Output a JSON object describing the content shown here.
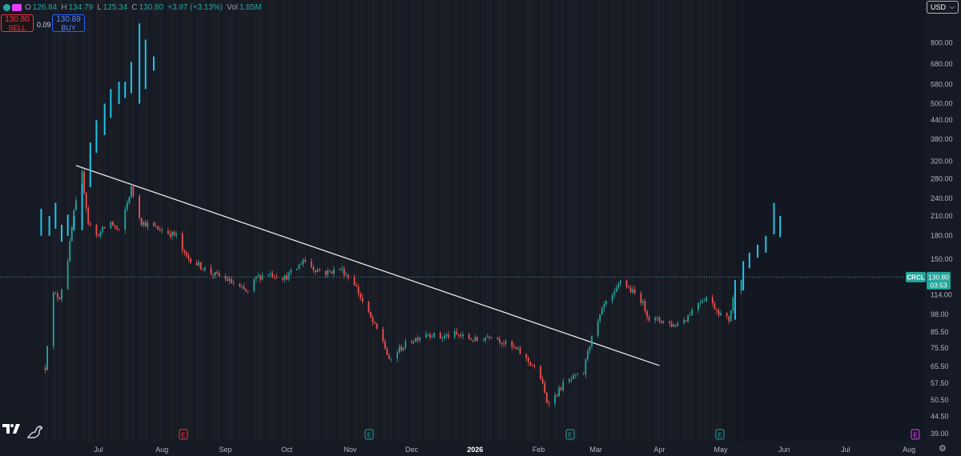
{
  "header": {
    "open_label": "O",
    "open": "126.84",
    "high_label": "H",
    "high": "134.79",
    "low_label": "L",
    "low": "125.34",
    "close_label": "C",
    "close": "130.80",
    "change": "+3.97 (+3.13%)",
    "vol_label": "Vol",
    "vol": "1.85M"
  },
  "trade": {
    "sell_price": "130.80",
    "sell_label": "SELL",
    "spread": "0.09",
    "buy_price": "130.89",
    "buy_label": "BUY"
  },
  "currency": "USD",
  "price_tag": {
    "symbol": "CRCL",
    "price": "130.80",
    "countdown": "03:53"
  },
  "event_markers": [
    {
      "label": "E",
      "month": "Aug",
      "color": "#f23645"
    },
    {
      "label": "E",
      "month": "Nov",
      "color": "#26a69a"
    },
    {
      "label": "E",
      "month": "Mar",
      "color": "#26a69a"
    },
    {
      "label": "E",
      "month": "May",
      "color": "#26a69a"
    },
    {
      "label": "E",
      "month": "Aug",
      "color": "#e040fb"
    }
  ],
  "icons": [
    "symbol-icon",
    "tradingview-logo-icon",
    "dino-icon",
    "settings-gear-icon",
    "chevron-down-icon"
  ],
  "colors": {
    "up": "#26a69a",
    "down": "#ef5350",
    "projection": "#22c4e6",
    "trendline": "#e9e9e9",
    "background": "#161a25"
  },
  "chart_data": {
    "type": "candlestick",
    "scale": "log",
    "symbol": "CRCL",
    "x_ticks": [
      "Jul",
      "Aug",
      "Sep",
      "Oct",
      "Nov",
      "Dec",
      "2026",
      "Feb",
      "Mar",
      "Apr",
      "May",
      "Jun",
      "Jul",
      "Aug"
    ],
    "y_ticks": [
      "800.00",
      "680.00",
      "580.00",
      "500.00",
      "440.00",
      "380.00",
      "320.00",
      "280.00",
      "240.00",
      "210.00",
      "180.00",
      "150.00",
      "114.00",
      "98.00",
      "85.50",
      "75.50",
      "65.50",
      "57.50",
      "50.50",
      "44.50",
      "39.00"
    ],
    "ylim": [
      36,
      1000
    ],
    "last_price": 130.8,
    "price_path": [
      {
        "x": "Jun 5",
        "y": 65
      },
      {
        "x": "Jun 8",
        "y": 115
      },
      {
        "x": "Jun 12",
        "y": 112
      },
      {
        "x": "Jun 16",
        "y": 150
      },
      {
        "x": "Jun 19",
        "y": 215
      },
      {
        "x": "Jun 23",
        "y": 290
      },
      {
        "x": "Jun 26",
        "y": 200
      },
      {
        "x": "Jun 30",
        "y": 180
      },
      {
        "x": "Jul 7",
        "y": 200
      },
      {
        "x": "Jul 11",
        "y": 185
      },
      {
        "x": "Jul 17",
        "y": 260
      },
      {
        "x": "Jul 22",
        "y": 200
      },
      {
        "x": "Jul 30",
        "y": 190
      },
      {
        "x": "Aug 8",
        "y": 180
      },
      {
        "x": "Aug 12",
        "y": 155
      },
      {
        "x": "Aug 18",
        "y": 145
      },
      {
        "x": "Aug 25",
        "y": 135
      },
      {
        "x": "Sep 2",
        "y": 128
      },
      {
        "x": "Sep 8",
        "y": 120
      },
      {
        "x": "Sep 12",
        "y": 116
      },
      {
        "x": "Sep 16",
        "y": 130
      },
      {
        "x": "Sep 22",
        "y": 135
      },
      {
        "x": "Sep 30",
        "y": 130
      },
      {
        "x": "Oct 6",
        "y": 140
      },
      {
        "x": "Oct 9",
        "y": 150
      },
      {
        "x": "Oct 14",
        "y": 140
      },
      {
        "x": "Oct 20",
        "y": 135
      },
      {
        "x": "Oct 27",
        "y": 140
      },
      {
        "x": "Nov 3",
        "y": 125
      },
      {
        "x": "Nov 7",
        "y": 108
      },
      {
        "x": "Nov 12",
        "y": 92
      },
      {
        "x": "Nov 17",
        "y": 80
      },
      {
        "x": "Nov 20",
        "y": 68
      },
      {
        "x": "Nov 25",
        "y": 75
      },
      {
        "x": "Dec 1",
        "y": 80
      },
      {
        "x": "Dec 8",
        "y": 85
      },
      {
        "x": "Dec 15",
        "y": 82
      },
      {
        "x": "Dec 22",
        "y": 84
      },
      {
        "x": "Jan 2",
        "y": 80
      },
      {
        "x": "Jan 9",
        "y": 84
      },
      {
        "x": "Jan 16",
        "y": 78
      },
      {
        "x": "Jan 22",
        "y": 74
      },
      {
        "x": "Jan 29",
        "y": 66
      },
      {
        "x": "Feb 2",
        "y": 60
      },
      {
        "x": "Feb 5",
        "y": 50
      },
      {
        "x": "Feb 9",
        "y": 52
      },
      {
        "x": "Feb 13",
        "y": 57
      },
      {
        "x": "Feb 18",
        "y": 60
      },
      {
        "x": "Feb 23",
        "y": 62
      },
      {
        "x": "Feb 25",
        "y": 75
      },
      {
        "x": "Mar 2",
        "y": 92
      },
      {
        "x": "Mar 5",
        "y": 105
      },
      {
        "x": "Mar 10",
        "y": 114
      },
      {
        "x": "Mar 13",
        "y": 128
      },
      {
        "x": "Mar 18",
        "y": 118
      },
      {
        "x": "Mar 23",
        "y": 110
      },
      {
        "x": "Mar 27",
        "y": 95
      },
      {
        "x": "Apr 3",
        "y": 93
      },
      {
        "x": "Apr 8",
        "y": 90
      },
      {
        "x": "Apr 14",
        "y": 95
      },
      {
        "x": "Apr 20",
        "y": 108
      },
      {
        "x": "Apr 24",
        "y": 112
      },
      {
        "x": "May 1",
        "y": 98
      },
      {
        "x": "May 5",
        "y": 94
      },
      {
        "x": "May 8",
        "y": 120
      },
      {
        "x": "May 11",
        "y": 130.8
      }
    ],
    "trendline": [
      {
        "x": "Jun 20",
        "y": 310
      },
      {
        "x": "Apr 1",
        "y": 66
      }
    ],
    "projection_bars": [
      {
        "x": "May 8",
        "low": 94,
        "high": 128
      },
      {
        "x": "May 12",
        "low": 118,
        "high": 148
      },
      {
        "x": "May 15",
        "low": 140,
        "high": 158
      },
      {
        "x": "May 19",
        "low": 152,
        "high": 168
      },
      {
        "x": "May 23",
        "low": 158,
        "high": 180
      },
      {
        "x": "May 27",
        "low": 182,
        "high": 232
      },
      {
        "x": "May 30",
        "low": 178,
        "high": 210
      },
      {
        "x": "Jun 3",
        "low": 180,
        "high": 222
      },
      {
        "x": "Jun 7",
        "low": 180,
        "high": 210
      },
      {
        "x": "Jun 10",
        "low": 190,
        "high": 232
      },
      {
        "x": "Jun 13",
        "low": 172,
        "high": 196
      },
      {
        "x": "Jun 16",
        "low": 180,
        "high": 212
      },
      {
        "x": "Jun 19",
        "low": 188,
        "high": 210
      },
      {
        "x": "Jun 23",
        "low": 188,
        "high": 268
      },
      {
        "x": "Jun 27",
        "low": 262,
        "high": 370
      },
      {
        "x": "Jun 30",
        "low": 342,
        "high": 440
      },
      {
        "x": "Jul 4",
        "low": 392,
        "high": 500
      },
      {
        "x": "Jul 7",
        "low": 448,
        "high": 560
      },
      {
        "x": "Jul 11",
        "low": 498,
        "high": 592
      },
      {
        "x": "Jul 14",
        "low": 522,
        "high": 592
      },
      {
        "x": "Jul 17",
        "low": 542,
        "high": 690
      },
      {
        "x": "Jul 21",
        "low": 500,
        "high": 930
      },
      {
        "x": "Jul 24",
        "low": 560,
        "high": 820
      },
      {
        "x": "Jul 28",
        "low": 645,
        "high": 720
      }
    ]
  }
}
